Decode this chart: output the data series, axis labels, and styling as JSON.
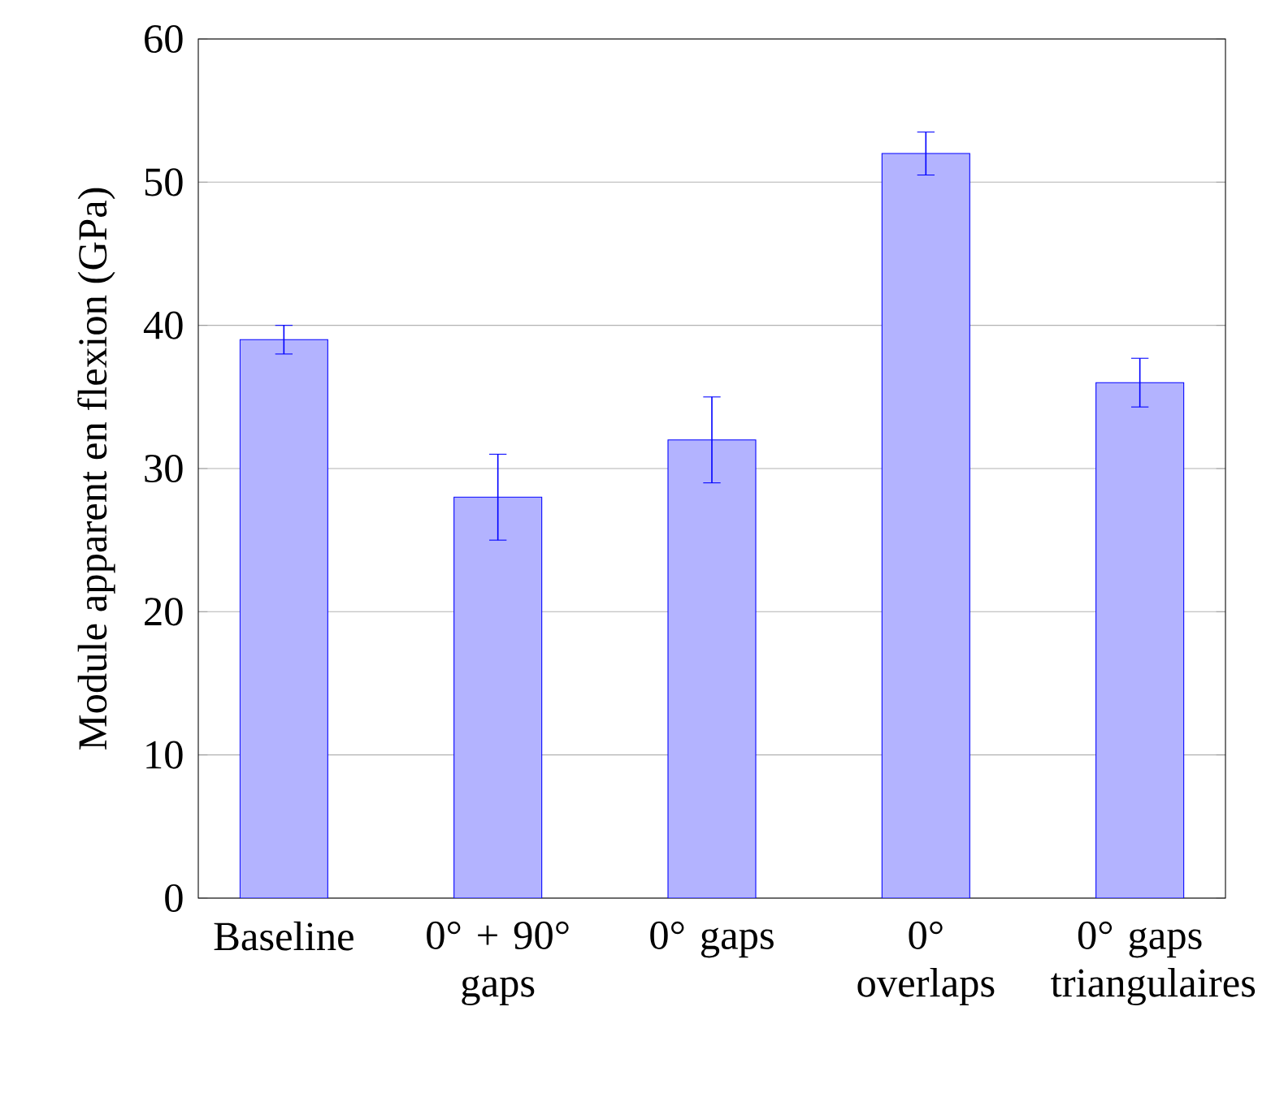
{
  "chart_data": {
    "type": "bar",
    "ylabel": "Module apparent en flexion (GPa)",
    "categories": [
      "Baseline",
      "0° + 90° gaps",
      "0° gaps",
      "0° overlaps",
      "0° gaps triangulaires"
    ],
    "values": [
      39,
      28,
      32,
      52,
      36
    ],
    "errors": [
      1,
      3,
      3,
      1.5,
      1.7
    ],
    "color": "#b3b3ff",
    "ylim": [
      0,
      60
    ],
    "yticks": [
      0,
      10,
      20,
      30,
      40,
      50,
      60
    ],
    "grid": "y"
  }
}
